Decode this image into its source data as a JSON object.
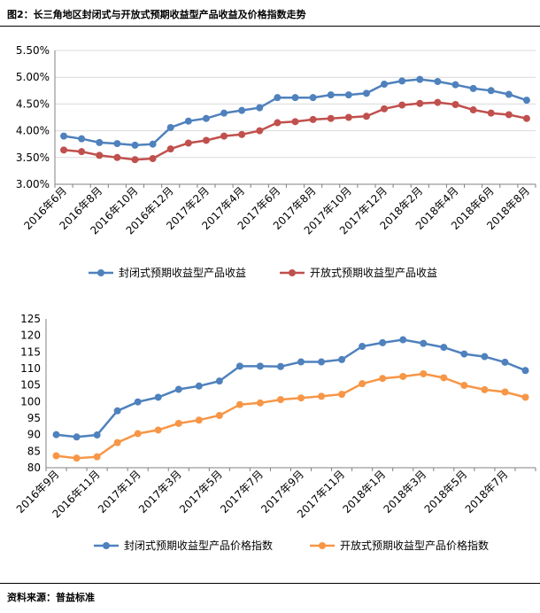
{
  "figure_title": "图2：长三角地区封闭式与开放式预期收益型产品收益及价格指数走势",
  "source": "资料来源：普益标准",
  "colors": {
    "closed_yield": "#4f81bd",
    "open_yield": "#c0504d",
    "closed_index": "#4f81bd",
    "open_index": "#f79646",
    "grid": "#d9d9d9",
    "axis": "#808080"
  },
  "chart_data": [
    {
      "type": "line",
      "x_ticks": [
        "2016年6月",
        "2016年8月",
        "2016年10月",
        "2016年12月",
        "2017年2月",
        "2017年4月",
        "2017年6月",
        "2017年8月",
        "2017年10月",
        "2017年12月",
        "2018年2月",
        "2018年4月",
        "2018年6月",
        "2018年8月"
      ],
      "y_ticks": [
        "3.00%",
        "3.50%",
        "4.00%",
        "4.50%",
        "5.00%",
        "5.50%"
      ],
      "ylim": [
        3.0,
        5.5
      ],
      "grid": true,
      "legend_position": "bottom",
      "series": [
        {
          "name": "封闭式预期收益型产品收益",
          "color": "#4f81bd",
          "values": [
            3.9,
            3.85,
            3.78,
            3.76,
            3.73,
            3.75,
            4.06,
            4.18,
            4.23,
            4.33,
            4.38,
            4.43,
            4.62,
            4.62,
            4.62,
            4.67,
            4.67,
            4.7,
            4.87,
            4.93,
            4.96,
            4.92,
            4.86,
            4.79,
            4.75,
            4.68,
            4.57
          ]
        },
        {
          "name": "开放式预期收益型产品收益",
          "color": "#c0504d",
          "values": [
            3.64,
            3.61,
            3.54,
            3.5,
            3.46,
            3.48,
            3.66,
            3.77,
            3.82,
            3.9,
            3.93,
            4.0,
            4.15,
            4.17,
            4.21,
            4.23,
            4.25,
            4.27,
            4.41,
            4.48,
            4.51,
            4.53,
            4.49,
            4.39,
            4.33,
            4.3,
            4.23
          ]
        }
      ]
    },
    {
      "type": "line",
      "x_ticks": [
        "2016年9月",
        "2016年11月",
        "2017年1月",
        "2017年3月",
        "2017年5月",
        "2017年7月",
        "2017年9月",
        "2017年11月",
        "2018年1月",
        "2018年3月",
        "2018年5月",
        "2018年7月"
      ],
      "y_ticks": [
        "80",
        "85",
        "90",
        "95",
        "100",
        "105",
        "110",
        "115",
        "120",
        "125"
      ],
      "ylim": [
        80,
        125
      ],
      "grid": false,
      "legend_position": "bottom",
      "series": [
        {
          "name": "封闭式预期收益型产品价格指数",
          "color": "#4f81bd",
          "values": [
            90.0,
            89.3,
            89.9,
            97.2,
            99.9,
            101.3,
            103.7,
            104.7,
            106.2,
            110.7,
            110.7,
            110.6,
            112.0,
            112.0,
            112.7,
            116.7,
            117.8,
            118.7,
            117.6,
            116.4,
            114.4,
            113.6,
            111.9,
            109.4
          ]
        },
        {
          "name": "开放式预期收益型产品价格指数",
          "color": "#f79646",
          "values": [
            83.6,
            82.9,
            83.3,
            87.6,
            90.3,
            91.4,
            93.4,
            94.4,
            95.8,
            99.1,
            99.6,
            100.6,
            101.1,
            101.6,
            102.2,
            105.4,
            107.0,
            107.6,
            108.4,
            107.2,
            104.9,
            103.6,
            102.9,
            101.3
          ]
        }
      ]
    }
  ]
}
